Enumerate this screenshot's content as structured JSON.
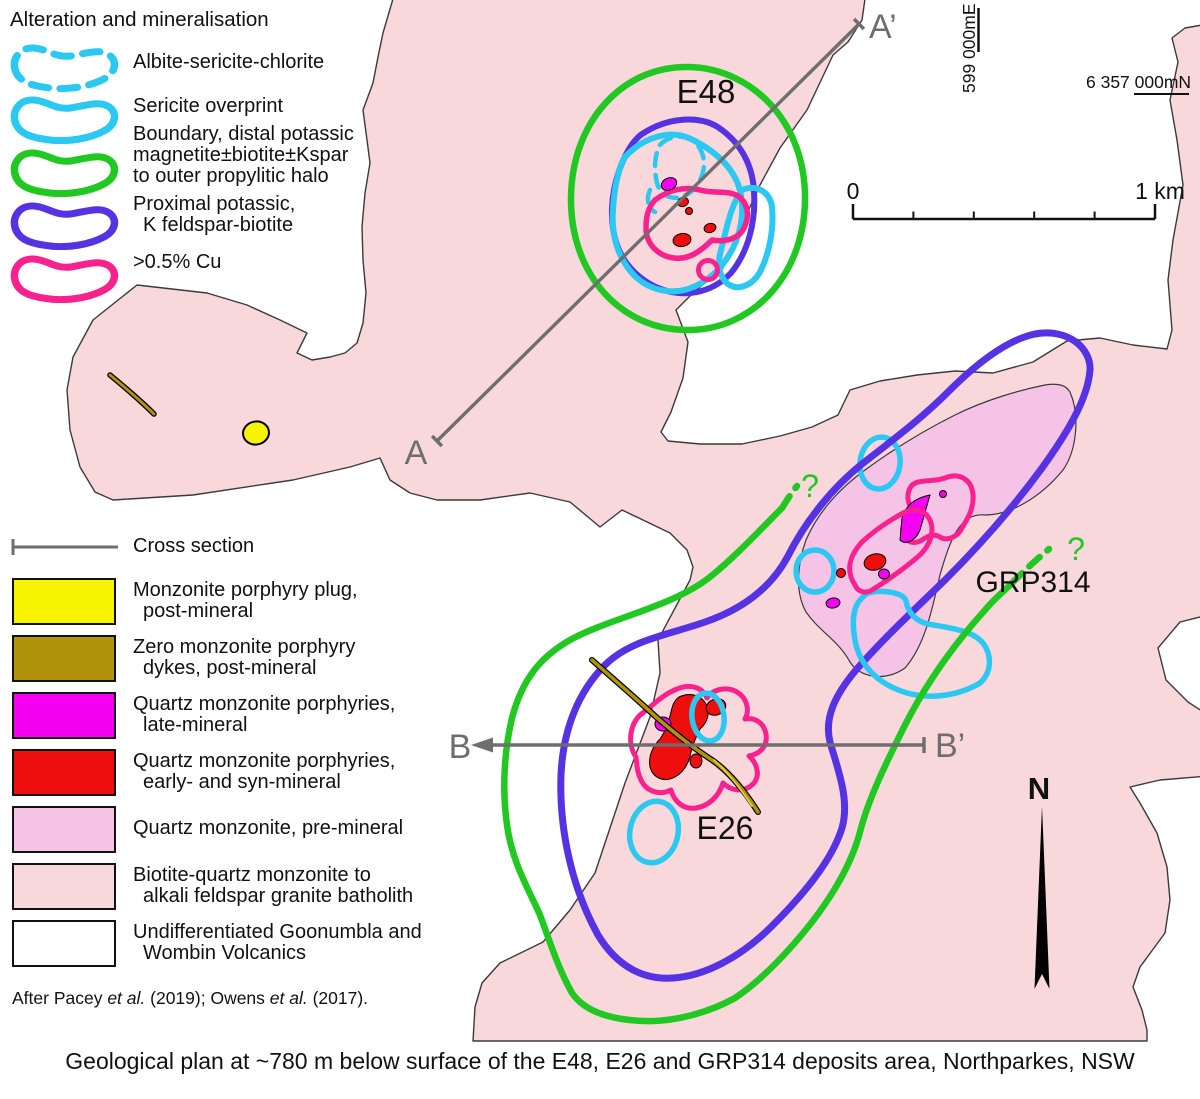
{
  "legend_alteration": {
    "title": "Alteration and mineralisation",
    "items": [
      {
        "lines": [
          "Albite-sericite-chlorite"
        ],
        "color": "#2BC8F2",
        "dashed": true
      },
      {
        "lines": [
          "Sericite overprint"
        ],
        "color": "#2BC8F2",
        "dashed": false
      },
      {
        "lines": [
          "Boundary, distal potassic",
          "magnetite±biotite±Kspar",
          "to outer propylitic halo"
        ],
        "color": "#22C822",
        "dashed": false
      },
      {
        "lines": [
          "Proximal potassic,",
          "K feldspar-biotite"
        ],
        "color": "#5633E2",
        "dashed": false
      },
      {
        "lines": [
          ">0.5% Cu"
        ],
        "color": "#F9218E",
        "dashed": false
      }
    ]
  },
  "legend_geology": {
    "cross_section_label": "Cross section",
    "items": [
      {
        "lines": [
          "Monzonite porphyry plug,",
          "post-mineral"
        ],
        "color": "#F7F400"
      },
      {
        "lines": [
          "Zero monzonite porphyry",
          "dykes, post-mineral"
        ],
        "color": "#B2920A"
      },
      {
        "lines": [
          "Quartz monzonite porphyries,",
          "late-mineral"
        ],
        "color": "#F500F0"
      },
      {
        "lines": [
          "Quartz monzonite porphyries,",
          "early- and syn-mineral"
        ],
        "color": "#EE0E0E"
      },
      {
        "lines": [
          "Quartz monzonite, pre-mineral"
        ],
        "color": "#F5C3E6"
      },
      {
        "lines": [
          "Biotite-quartz monzonite to",
          "alkali feldspar granite batholith"
        ],
        "color": "#F9D8DC"
      },
      {
        "lines": [
          "Undifferentiated Goonumbla and",
          "Wombin Volcanics"
        ],
        "color": "#FFFFFF"
      }
    ]
  },
  "attribution": {
    "segments": [
      {
        "text": "After Pacey ",
        "italic": false
      },
      {
        "text": "et al.",
        "italic": true
      },
      {
        "text": " (2019); Owens ",
        "italic": false
      },
      {
        "text": "et al.",
        "italic": true
      },
      {
        "text": " (2017).",
        "italic": false
      }
    ]
  },
  "caption": "Geological plan at ~780 m below surface of the E48, E26 and GRP314 deposits area, Northparkes, NSW",
  "map": {
    "labels": {
      "e48": "E48",
      "e26": "E26",
      "grp314": "GRP314"
    },
    "sections": {
      "a": "A",
      "a_prime": "A’",
      "b": "B",
      "b_prime": "B’"
    },
    "scale": {
      "zero": "0",
      "one_km": "1 km"
    },
    "coords": {
      "easting": "599 000mE",
      "northing_prefix": "6 357 ",
      "northing_underlined": "000mN"
    },
    "north": "N",
    "query_nw": "?",
    "query_ne": "?"
  },
  "colors": {
    "green": "#22C822",
    "cyan": "#2BC8F2",
    "blue": "#5633E2",
    "cupink": "#F9218E",
    "magenta": "#F500F0",
    "red": "#EE0E0E",
    "yellow": "#F7F400",
    "olive": "#B2920A",
    "olivelight": "#E3CE4E",
    "qmpink": "#F5C3E6",
    "batholith": "#F9D8DC",
    "boundary": "#3A3A3A",
    "sectiongray": "#6E6E6E",
    "ink": "#111111"
  }
}
